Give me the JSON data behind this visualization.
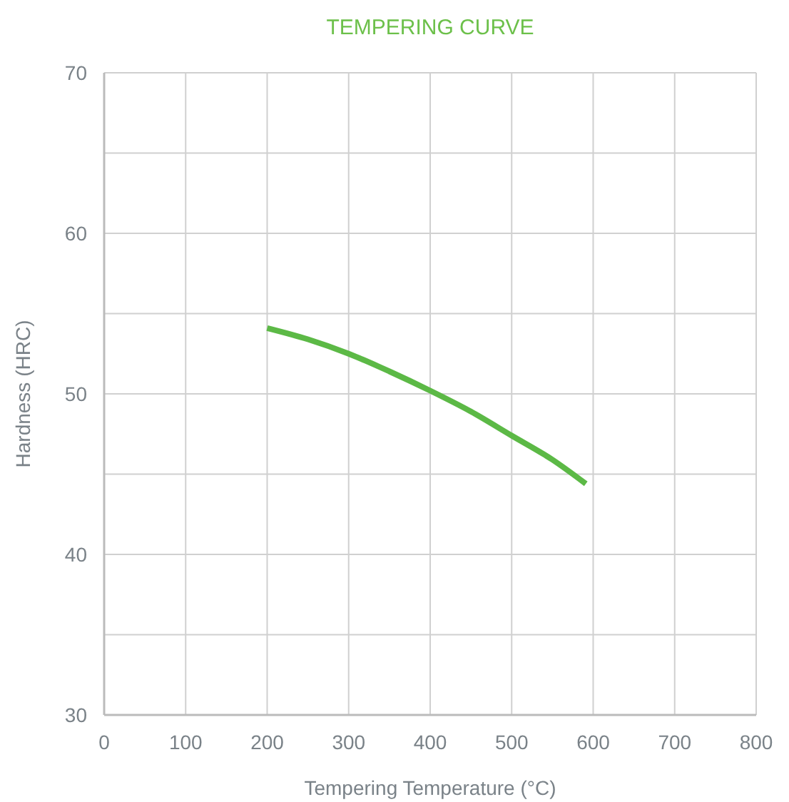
{
  "chart_data": {
    "type": "line",
    "title": "TEMPERING CURVE",
    "xlabel": "Tempering Temperature (°C)",
    "ylabel": "Hardness (HRC)",
    "x": [
      200,
      250,
      300,
      350,
      400,
      450,
      500,
      550,
      591
    ],
    "series": [
      {
        "color": "#5cb946",
        "values": [
          54.1,
          53.4,
          52.5,
          51.4,
          50.2,
          48.9,
          47.4,
          45.9,
          44.4
        ]
      }
    ],
    "xlim": [
      0,
      800
    ],
    "xticks": [
      0,
      100,
      200,
      300,
      400,
      500,
      600,
      700,
      800
    ],
    "ylim": [
      30,
      70
    ],
    "yticks": [
      30,
      {
        "value": 35,
        "label": null
      },
      40,
      {
        "value": 45,
        "label": null
      },
      50,
      {
        "value": 55,
        "label": null
      },
      60,
      {
        "value": 65,
        "label": null
      },
      70
    ],
    "grid": true,
    "marker": "none",
    "line_style": "solid"
  }
}
